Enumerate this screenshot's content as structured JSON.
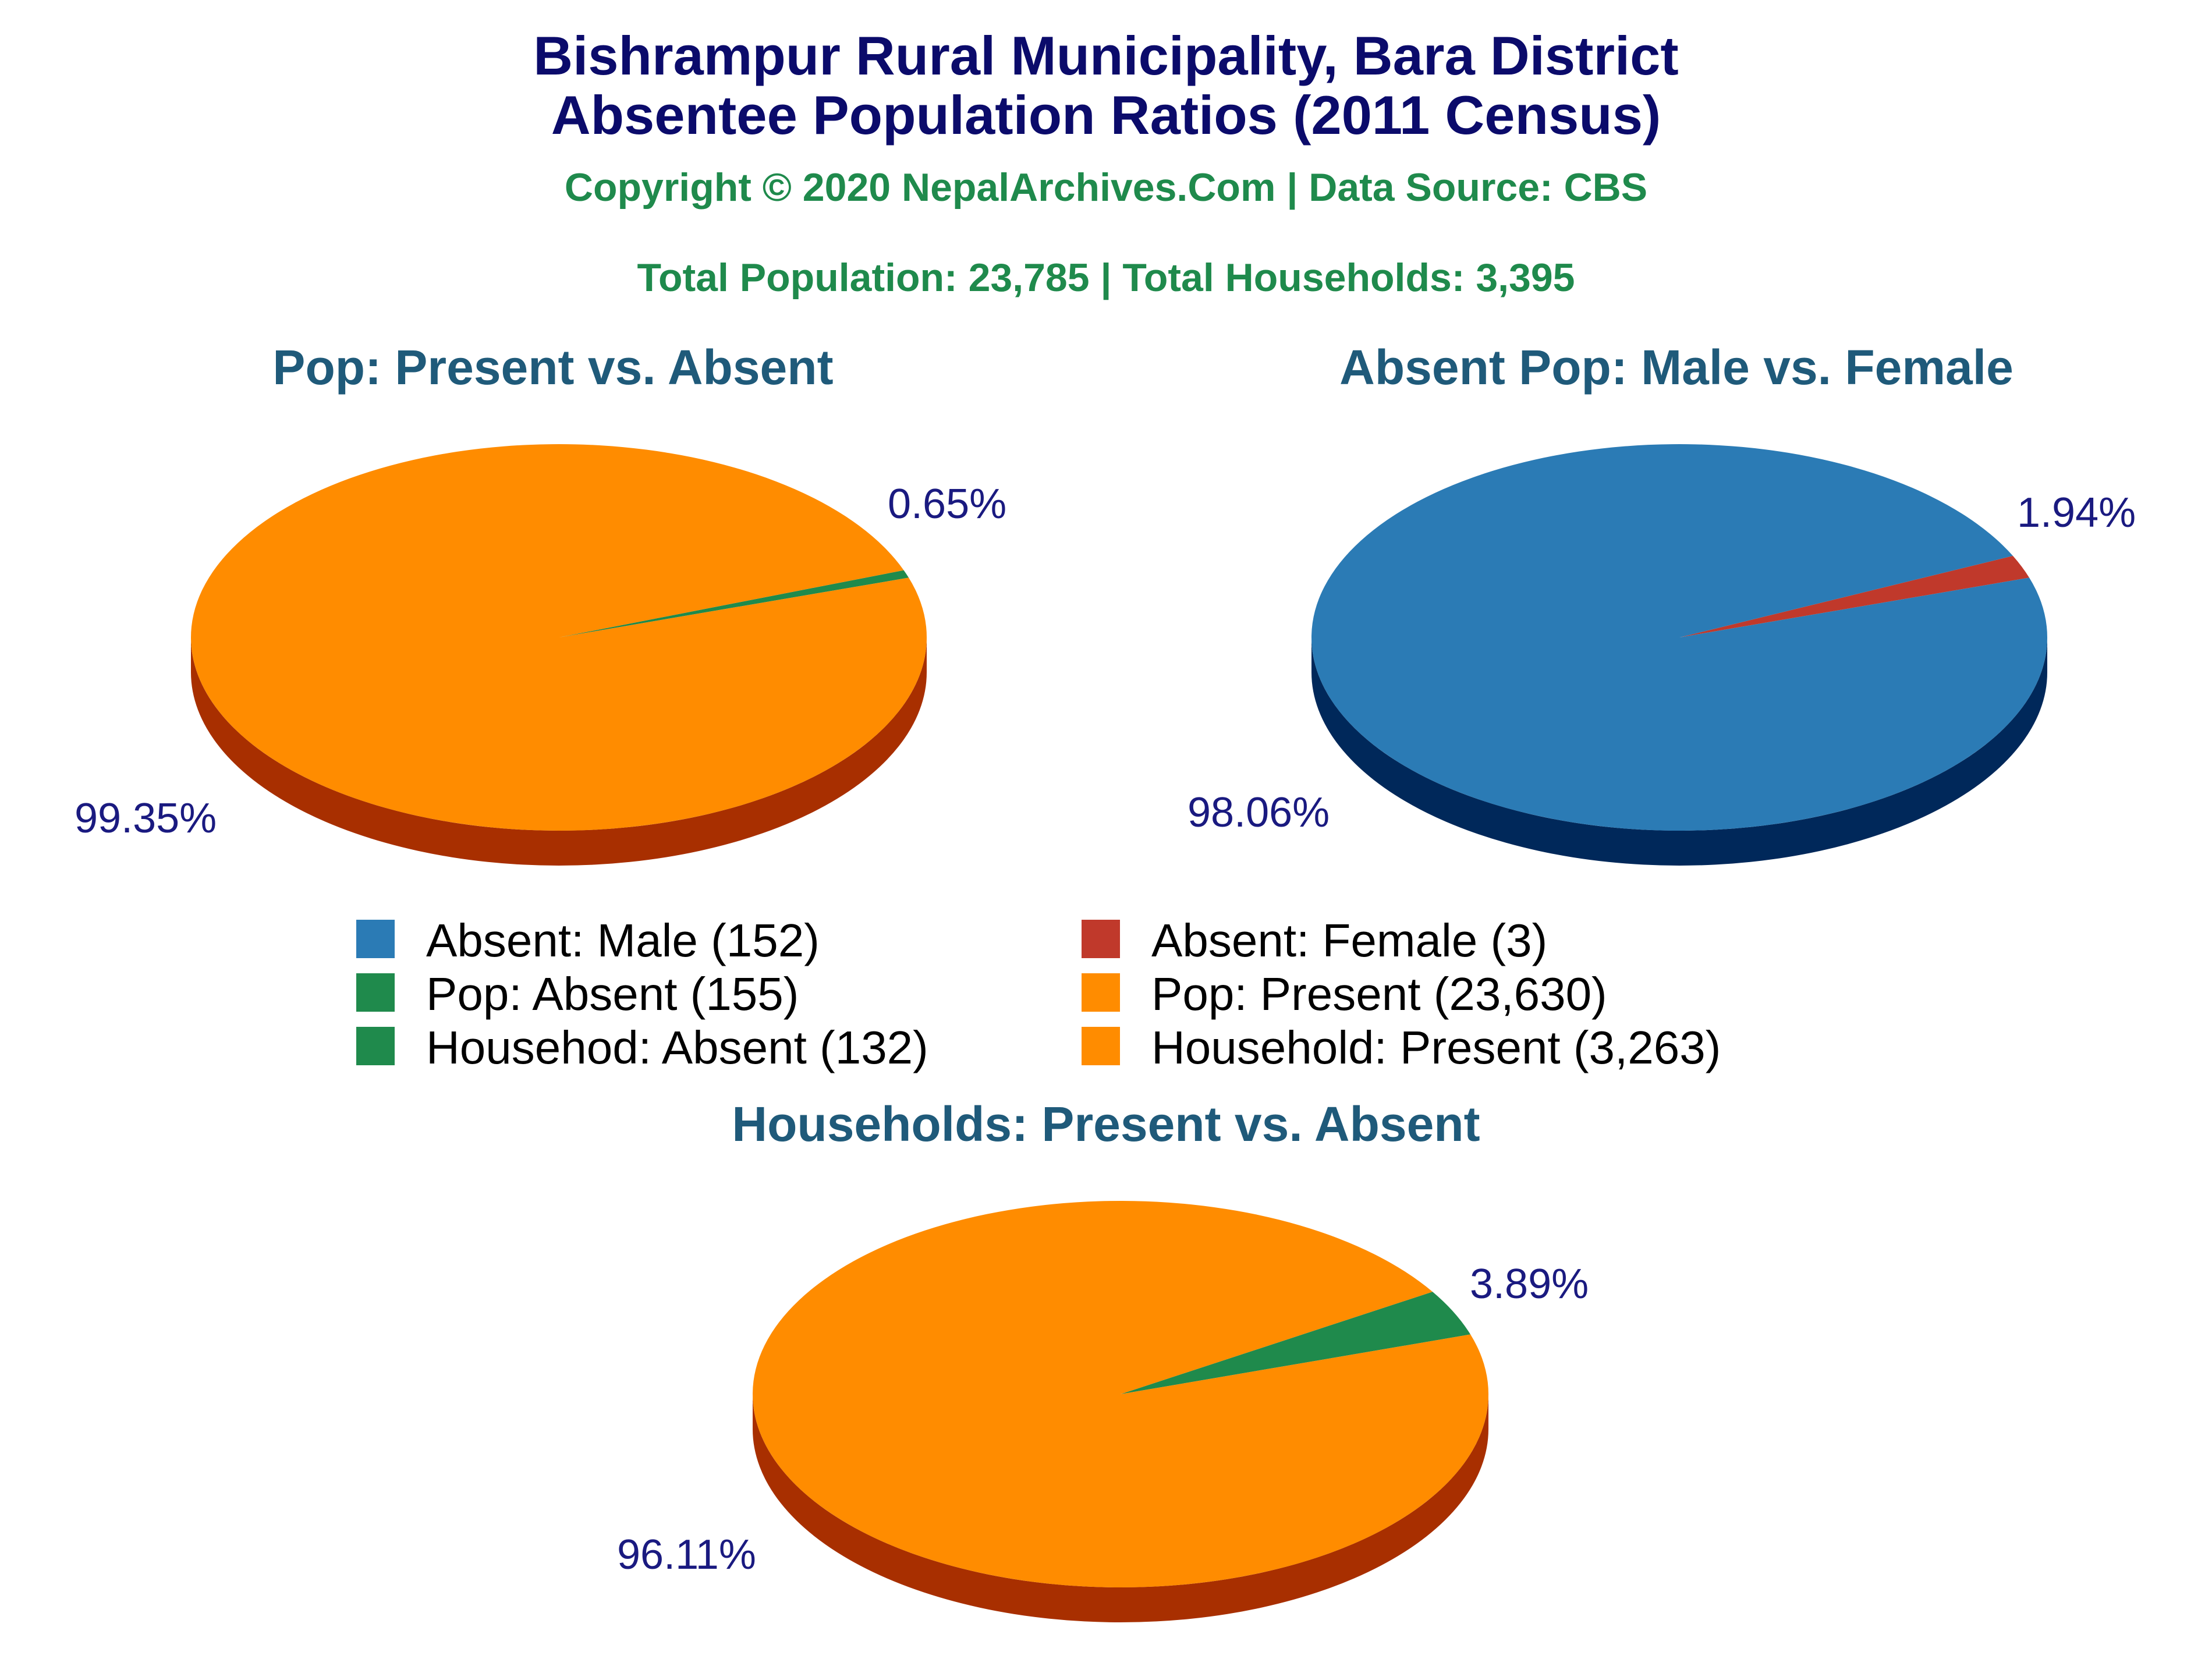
{
  "header": {
    "title_line1": "Bishrampur Rural Municipality, Bara District",
    "title_line2": "Absentee Population Ratios (2011 Census)",
    "copyright": "Copyright © 2020 NepalArchives.Com | Data Source: CBS",
    "totals": "Total Population: 23,785 | Total Households: 3,395"
  },
  "colors": {
    "title": "#0b0b6b",
    "subtitle": "#1f8a4c",
    "chart_title": "#1f5a7a",
    "data_label": "#1a1a80",
    "male": "#2b7bb5",
    "male_side": "#00285a",
    "female": "#c0392b",
    "present": "#ff8c00",
    "present_side": "#a82f00",
    "absent": "#1f8a4c"
  },
  "legend": [
    {
      "label": "Absent: Male (152)",
      "color": "#2b7bb5"
    },
    {
      "label": "Absent: Female (3)",
      "color": "#c0392b"
    },
    {
      "label": "Pop: Absent (155)",
      "color": "#1f8a4c"
    },
    {
      "label": "Pop: Present (23,630)",
      "color": "#ff8c00"
    },
    {
      "label": "Househod: Absent (132)",
      "color": "#1f8a4c"
    },
    {
      "label": "Household: Present (3,263)",
      "color": "#ff8c00"
    }
  ],
  "chart_data": [
    {
      "type": "pie",
      "title": "Pop: Present vs. Absent",
      "slices": [
        {
          "name": "Pop: Absent",
          "value": 155,
          "percent": 0.65,
          "label": "0.65%",
          "color": "#1f8a4c"
        },
        {
          "name": "Pop: Present",
          "value": 23630,
          "percent": 99.35,
          "label": "99.35%",
          "color": "#ff8c00"
        }
      ],
      "side_color": "#a82f00"
    },
    {
      "type": "pie",
      "title": "Absent Pop: Male vs. Female",
      "slices": [
        {
          "name": "Absent: Female",
          "value": 3,
          "percent": 1.94,
          "label": "1.94%",
          "color": "#c0392b"
        },
        {
          "name": "Absent: Male",
          "value": 152,
          "percent": 98.06,
          "label": "98.06%",
          "color": "#2b7bb5"
        }
      ],
      "side_color": "#00285a"
    },
    {
      "type": "pie",
      "title": "Households: Present vs. Absent",
      "slices": [
        {
          "name": "Household: Absent",
          "value": 132,
          "percent": 3.89,
          "label": "3.89%",
          "color": "#1f8a4c"
        },
        {
          "name": "Household: Present",
          "value": 3263,
          "percent": 96.11,
          "label": "96.11%",
          "color": "#ff8c00"
        }
      ],
      "side_color": "#a82f00"
    }
  ]
}
